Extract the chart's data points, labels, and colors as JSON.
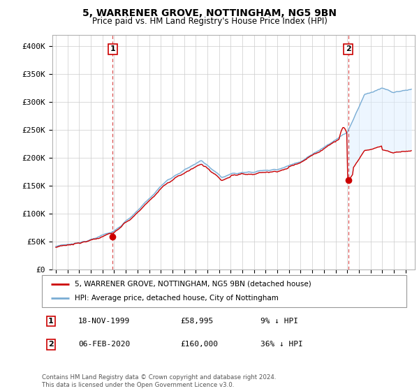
{
  "title": "5, WARRENER GROVE, NOTTINGHAM, NG5 9BN",
  "subtitle": "Price paid vs. HM Land Registry's House Price Index (HPI)",
  "title_fontsize": 10,
  "subtitle_fontsize": 8.5,
  "ylabel_ticks": [
    "£0",
    "£50K",
    "£100K",
    "£150K",
    "£200K",
    "£250K",
    "£300K",
    "£350K",
    "£400K"
  ],
  "ytick_values": [
    0,
    50000,
    100000,
    150000,
    200000,
    250000,
    300000,
    350000,
    400000
  ],
  "ylim": [
    0,
    420000
  ],
  "xlim_start": 1994.7,
  "xlim_end": 2025.8,
  "sale1_year": 1999.88,
  "sale1_price": 58995,
  "sale1_label": "1",
  "sale2_year": 2020.09,
  "sale2_price": 160000,
  "sale2_label": "2",
  "legend_line1": "5, WARRENER GROVE, NOTTINGHAM, NG5 9BN (detached house)",
  "legend_line2": "HPI: Average price, detached house, City of Nottingham",
  "table_row1": [
    "1",
    "18-NOV-1999",
    "£58,995",
    "9% ↓ HPI"
  ],
  "table_row2": [
    "2",
    "06-FEB-2020",
    "£160,000",
    "36% ↓ HPI"
  ],
  "footnote": "Contains HM Land Registry data © Crown copyright and database right 2024.\nThis data is licensed under the Open Government Licence v3.0.",
  "line_color_red": "#cc0000",
  "line_color_blue": "#7aadd4",
  "fill_color_blue": "#ddeeff",
  "vline_color": "#cc0000",
  "background_color": "#ffffff",
  "grid_color": "#cccccc"
}
